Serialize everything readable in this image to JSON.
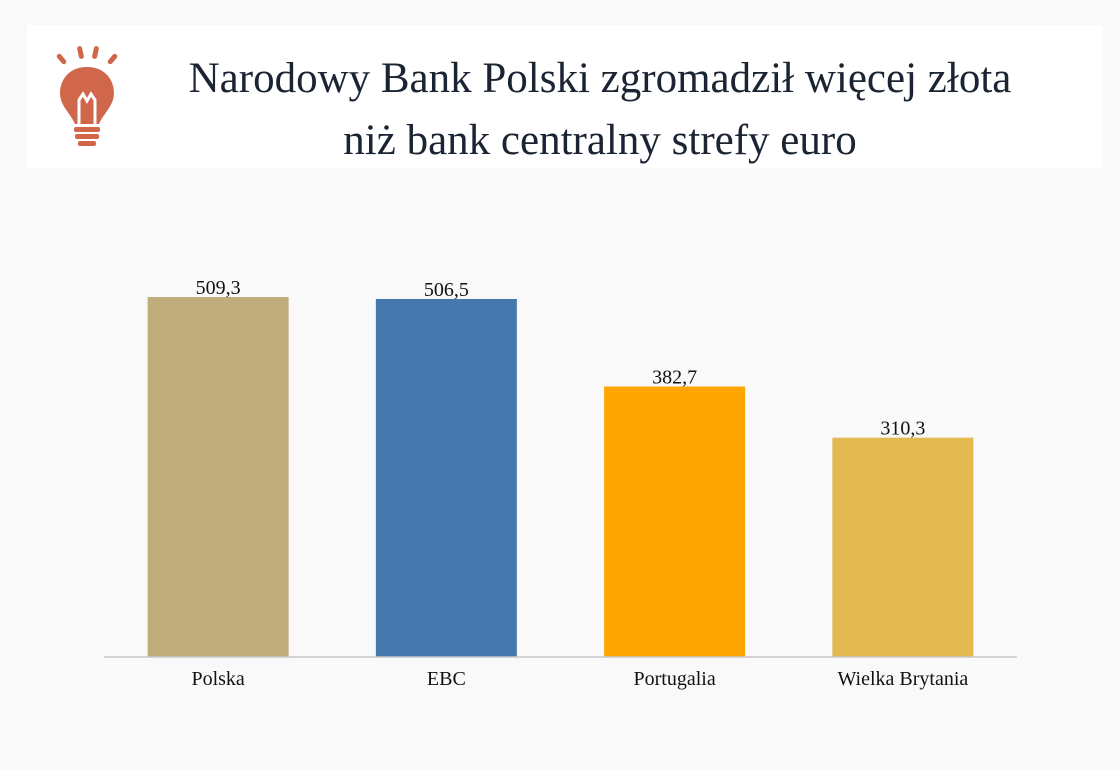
{
  "header": {
    "title_line1": "Narodowy Bank Polski zgromadził więcej złota",
    "title_line2": "niż bank centralny strefy euro",
    "icon": "lightbulb-icon",
    "icon_color": "#d0664a"
  },
  "chart_data": {
    "type": "bar",
    "title": "Narodowy Bank Polski zgromadził więcej złota niż bank centralny strefy euro",
    "categories": [
      "Polska",
      "EBC",
      "Portugalia",
      "Wielka Brytania"
    ],
    "values": [
      509.3,
      506.5,
      382.7,
      310.3
    ],
    "value_labels": [
      "509,3",
      "506,5",
      "382,7",
      "310,3"
    ],
    "colors": [
      "#bfad7b",
      "#4579ad",
      "#fda601",
      "#e4b952"
    ],
    "xlabel": "",
    "ylabel": "",
    "ylim": [
      0,
      509.3
    ],
    "grid": false,
    "legend": "none"
  }
}
